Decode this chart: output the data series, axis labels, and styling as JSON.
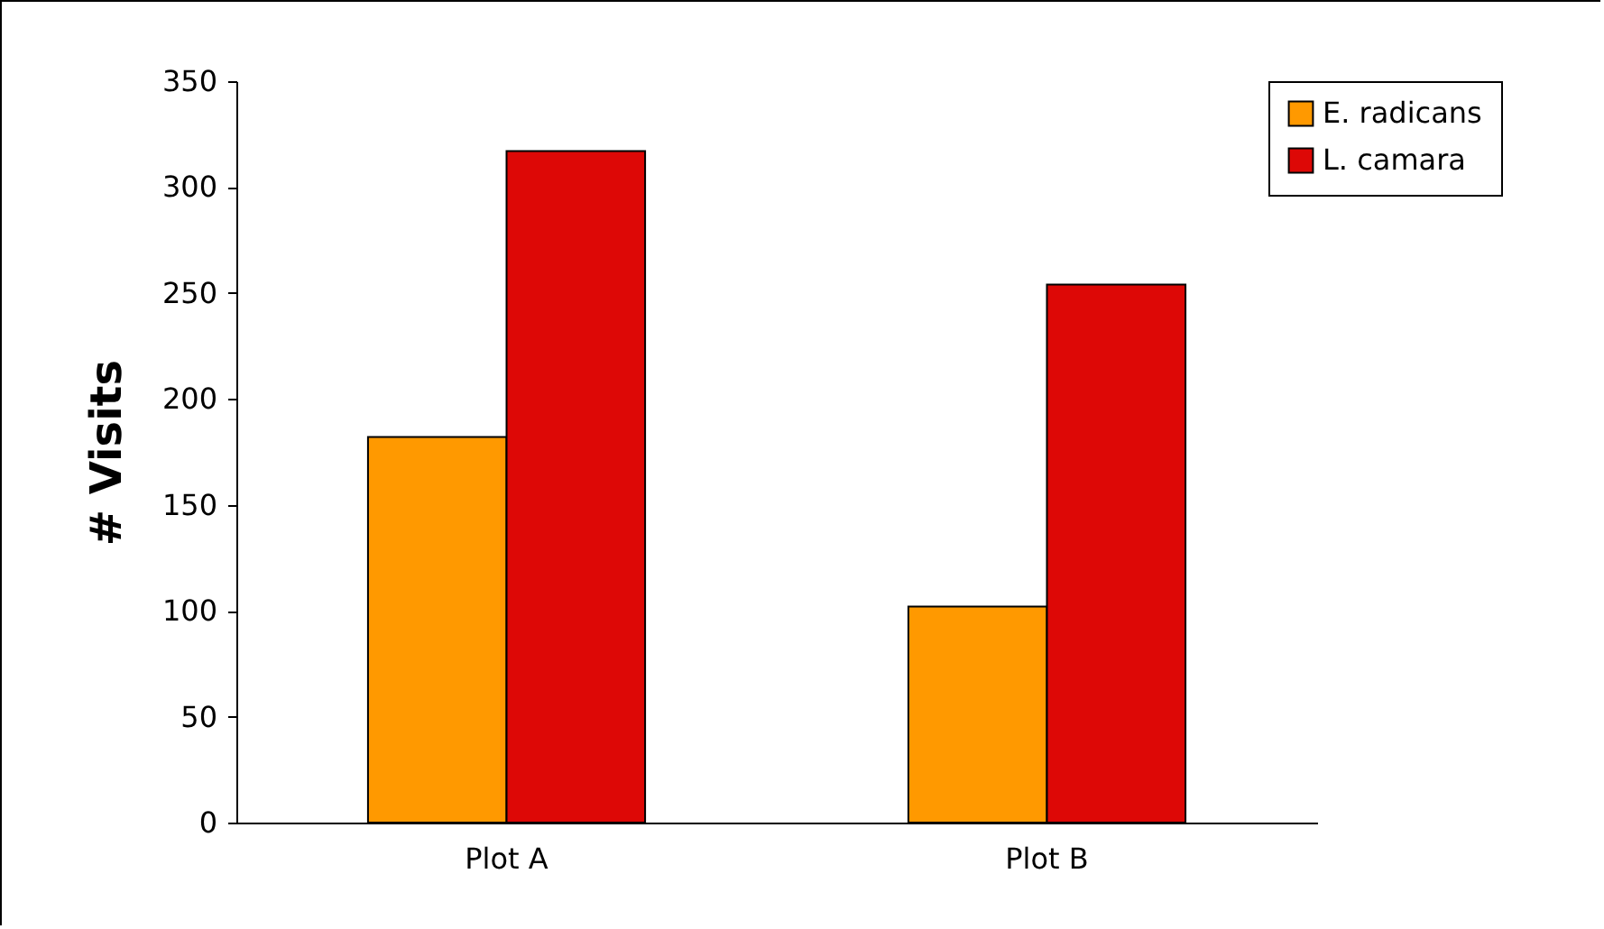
{
  "chart_data": {
    "type": "bar",
    "ylabel": "# Visits",
    "categories": [
      "Plot A",
      "Plot B"
    ],
    "series": [
      {
        "name": "E. radicans",
        "color": "#ff9900",
        "values": [
          182,
          102
        ]
      },
      {
        "name": "L. camara",
        "color": "#dd0806",
        "values": [
          317,
          254
        ]
      }
    ],
    "ylim": [
      0,
      350
    ],
    "yticks": [
      0,
      50,
      100,
      150,
      200,
      250,
      300,
      350
    ],
    "grid": false,
    "legend": "top right"
  }
}
